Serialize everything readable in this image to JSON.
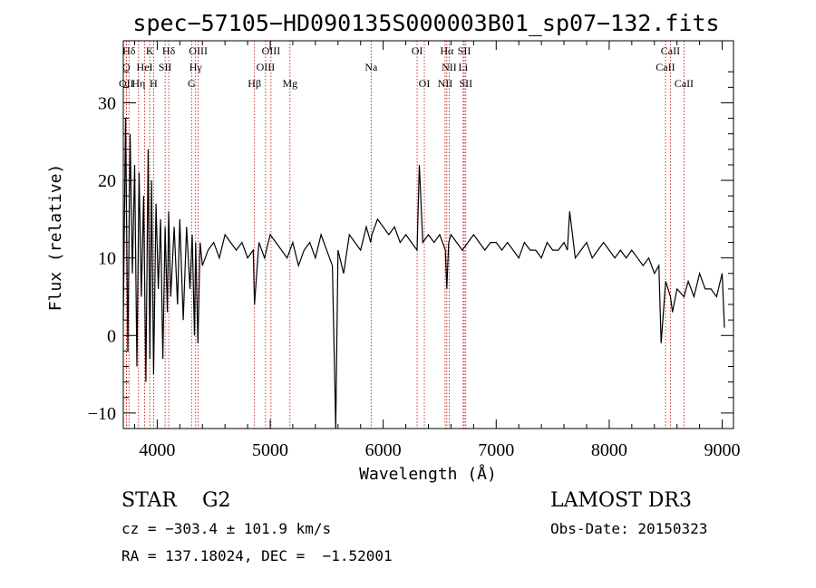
{
  "chart_data": {
    "type": "line",
    "title": "spec−57105−HD090135S000003B01_sp07−132.fits",
    "xlabel": "Wavelength (Å)",
    "ylabel": "Flux (relative)",
    "xlim": [
      3700,
      9100
    ],
    "ylim": [
      -12,
      38
    ],
    "x_ticks": [
      4000,
      5000,
      6000,
      7000,
      8000,
      9000
    ],
    "y_ticks": [
      -10,
      0,
      10,
      20,
      30
    ],
    "grid": false,
    "series": [
      {
        "x": [
          3700,
          3720,
          3740,
          3760,
          3780,
          3800,
          3820,
          3840,
          3860,
          3880,
          3900,
          3920,
          3935,
          3950,
          3968,
          3990,
          4010,
          4030,
          4050,
          4070,
          4090,
          4101,
          4120,
          4150,
          4180,
          4200,
          4230,
          4260,
          4290,
          4310,
          4330,
          4340,
          4360,
          4380,
          4400,
          4450,
          4500,
          4550,
          4600,
          4650,
          4700,
          4750,
          4800,
          4850,
          4861,
          4900,
          4950,
          5000,
          5050,
          5100,
          5150,
          5200,
          5250,
          5300,
          5350,
          5400,
          5450,
          5500,
          5550,
          5580,
          5600,
          5650,
          5700,
          5750,
          5800,
          5850,
          5890,
          5900,
          5950,
          6000,
          6050,
          6100,
          6150,
          6200,
          6250,
          6300,
          6320,
          6350,
          6400,
          6450,
          6500,
          6550,
          6563,
          6580,
          6600,
          6650,
          6700,
          6750,
          6800,
          6850,
          6900,
          6950,
          7000,
          7050,
          7100,
          7150,
          7200,
          7250,
          7300,
          7350,
          7400,
          7450,
          7500,
          7550,
          7600,
          7630,
          7650,
          7700,
          7750,
          7800,
          7850,
          7900,
          7950,
          8000,
          8050,
          8100,
          8150,
          8200,
          8250,
          8300,
          8350,
          8400,
          8440,
          8460,
          8500,
          8542,
          8560,
          8600,
          8662,
          8700,
          8750,
          8800,
          8850,
          8900,
          8950,
          9000,
          9020
        ],
        "y": [
          2,
          28,
          -2,
          26,
          8,
          22,
          -4,
          21,
          5,
          18,
          -6,
          24,
          -3,
          20,
          -5,
          17,
          6,
          15,
          -3,
          14,
          3,
          16,
          5,
          14,
          4,
          15,
          2,
          14,
          6,
          13,
          0,
          12,
          -1,
          12,
          9,
          11,
          12,
          10,
          13,
          12,
          11,
          12,
          10,
          11,
          4,
          12,
          10,
          13,
          12,
          11,
          10,
          12,
          9,
          11,
          12,
          10,
          13,
          11,
          9,
          -12,
          11,
          8,
          13,
          12,
          11,
          14,
          12,
          13,
          15,
          14,
          13,
          14,
          12,
          13,
          12,
          11,
          22,
          12,
          13,
          12,
          13,
          11,
          6,
          12,
          13,
          12,
          11,
          12,
          13,
          12,
          11,
          12,
          12,
          11,
          12,
          11,
          10,
          12,
          11,
          11,
          10,
          12,
          11,
          11,
          12,
          11,
          16,
          10,
          11,
          12,
          10,
          11,
          12,
          11,
          10,
          11,
          10,
          11,
          10,
          9,
          10,
          8,
          9,
          -1,
          7,
          5,
          3,
          6,
          5,
          7,
          5,
          8,
          6,
          6,
          5,
          8,
          1
        ]
      }
    ],
    "spectral_lines": [
      {
        "label": "Hδ",
        "x": 3750,
        "row": 0
      },
      {
        "label": "K",
        "x": 3934,
        "row": 0
      },
      {
        "label": "Hδ",
        "x": 4102,
        "row": 0
      },
      {
        "label": "OIII",
        "x": 4363,
        "row": 0
      },
      {
        "label": "OIII",
        "x": 5007,
        "row": 0
      },
      {
        "label": "OI",
        "x": 6300,
        "row": 0
      },
      {
        "label": "Hα",
        "x": 6563,
        "row": 0
      },
      {
        "label": "SII",
        "x": 6717,
        "row": 0
      },
      {
        "label": "CaII",
        "x": 8542,
        "row": 0
      },
      {
        "label": "O",
        "x": 3727,
        "row": 1
      },
      {
        "label": "HeI",
        "x": 3889,
        "row": 1
      },
      {
        "label": "SII",
        "x": 4070,
        "row": 1
      },
      {
        "label": "Hγ",
        "x": 4340,
        "row": 1
      },
      {
        "label": "OIII",
        "x": 4959,
        "row": 1
      },
      {
        "label": "Na",
        "x": 5893,
        "row": 1
      },
      {
        "label": "NII",
        "x": 6584,
        "row": 1
      },
      {
        "label": "Li",
        "x": 6708,
        "row": 1
      },
      {
        "label": "CaII",
        "x": 8498,
        "row": 1
      },
      {
        "label": "OII",
        "x": 3727,
        "row": 2
      },
      {
        "label": "Hη",
        "x": 3835,
        "row": 2
      },
      {
        "label": "H",
        "x": 3968,
        "row": 2
      },
      {
        "label": "G",
        "x": 4304,
        "row": 2
      },
      {
        "label": "Hβ",
        "x": 4861,
        "row": 2
      },
      {
        "label": "Mg",
        "x": 5175,
        "row": 2
      },
      {
        "label": "OI",
        "x": 6364,
        "row": 2
      },
      {
        "label": "NII",
        "x": 6548,
        "row": 2
      },
      {
        "label": "SII",
        "x": 6731,
        "row": 2
      },
      {
        "label": "CaII",
        "x": 8662,
        "row": 2
      }
    ],
    "line_marker_color": "#c00000"
  },
  "footer": {
    "object_class": "STAR    G2",
    "survey": "LAMOST DR3",
    "cz": "cz = −303.4 ± 101.9 km/s",
    "obs_date": "Obs-Date: 20150323",
    "coords": "RA = 137.18024, DEC =  −1.52001"
  }
}
